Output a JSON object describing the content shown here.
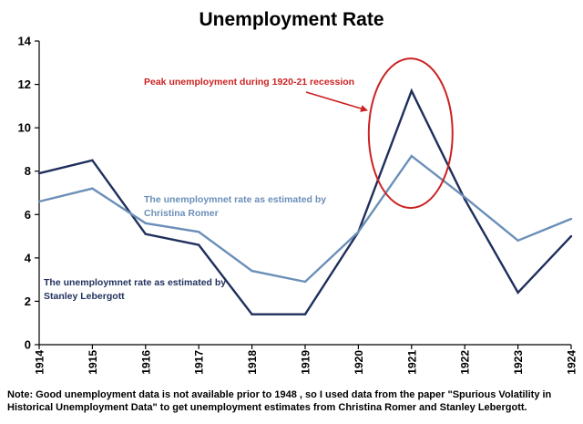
{
  "chart_data": {
    "type": "line",
    "title": "Unemployment Rate",
    "x": [
      "1914",
      "1915",
      "1916",
      "1917",
      "1918",
      "1919",
      "1920",
      "1921",
      "1922",
      "1923",
      "1924"
    ],
    "ylim": [
      0,
      14
    ],
    "yticks": [
      0,
      2,
      4,
      6,
      8,
      10,
      12,
      14
    ],
    "grid": false,
    "series": [
      {
        "label": "The unemploymnet rate as estimated by Stanley Lebergott",
        "label_lines": [
          "The unemploymnet rate as estimated by",
          "Stanley Lebergott"
        ],
        "color": "#1f2f5c",
        "values": [
          7.9,
          8.5,
          5.1,
          4.6,
          1.4,
          1.4,
          5.2,
          11.7,
          6.7,
          2.4,
          5.0
        ]
      },
      {
        "label": "The unemploymnet rate as estimated by Christina Romer",
        "label_lines": [
          "The unemploymnet rate as estimated by",
          "Christina Romer"
        ],
        "color": "#6b8fb8",
        "values": [
          6.6,
          7.2,
          5.6,
          5.2,
          3.4,
          2.9,
          5.2,
          8.7,
          6.8,
          4.8,
          5.8
        ]
      }
    ],
    "annotation": {
      "text": "Peak unemployment during 1920-21 recession",
      "color": "#cc2222",
      "target_x": "1921",
      "target_y": 9.75
    }
  },
  "note": "Note: Good unemployment data is not available prior to 1948 , so I used data from the paper \"Spurious Volatility in Historical Unemployment Data\" to get unemployment estimates from Christina Romer and  Stanley Lebergott."
}
